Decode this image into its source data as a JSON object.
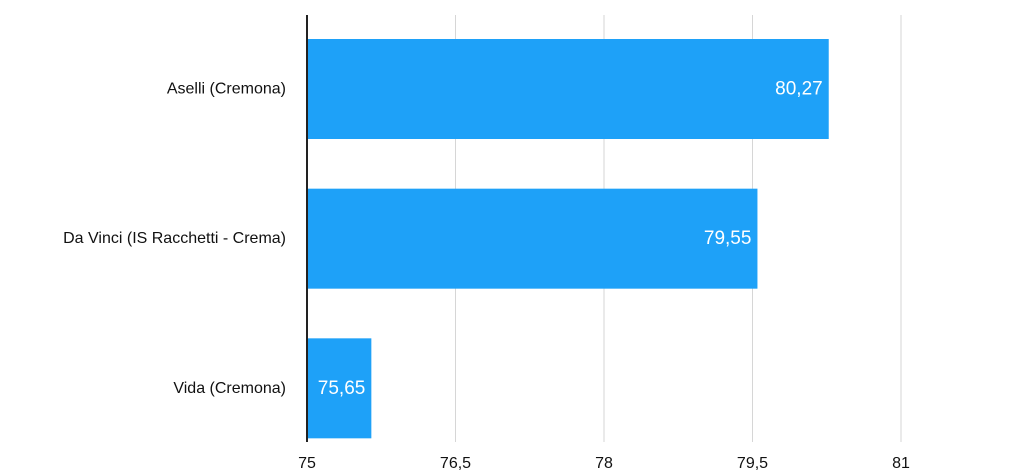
{
  "chart_data": {
    "type": "bar",
    "orientation": "horizontal",
    "categories": [
      "Aselli (Cremona)",
      "Da Vinci (IS Racchetti - Crema)",
      "Vida (Cremona)"
    ],
    "values": [
      80.27,
      79.55,
      75.65
    ],
    "value_labels": [
      "80,27",
      "79,55",
      "75,65"
    ],
    "xlim": [
      75,
      81
    ],
    "xticks": [
      75,
      76.5,
      78,
      79.5,
      81
    ],
    "xtick_labels": [
      "75",
      "76,5",
      "78",
      "79,5",
      "81"
    ],
    "grid": true,
    "bar_color": "#1ea1f8",
    "title": "",
    "xlabel": "",
    "ylabel": ""
  }
}
